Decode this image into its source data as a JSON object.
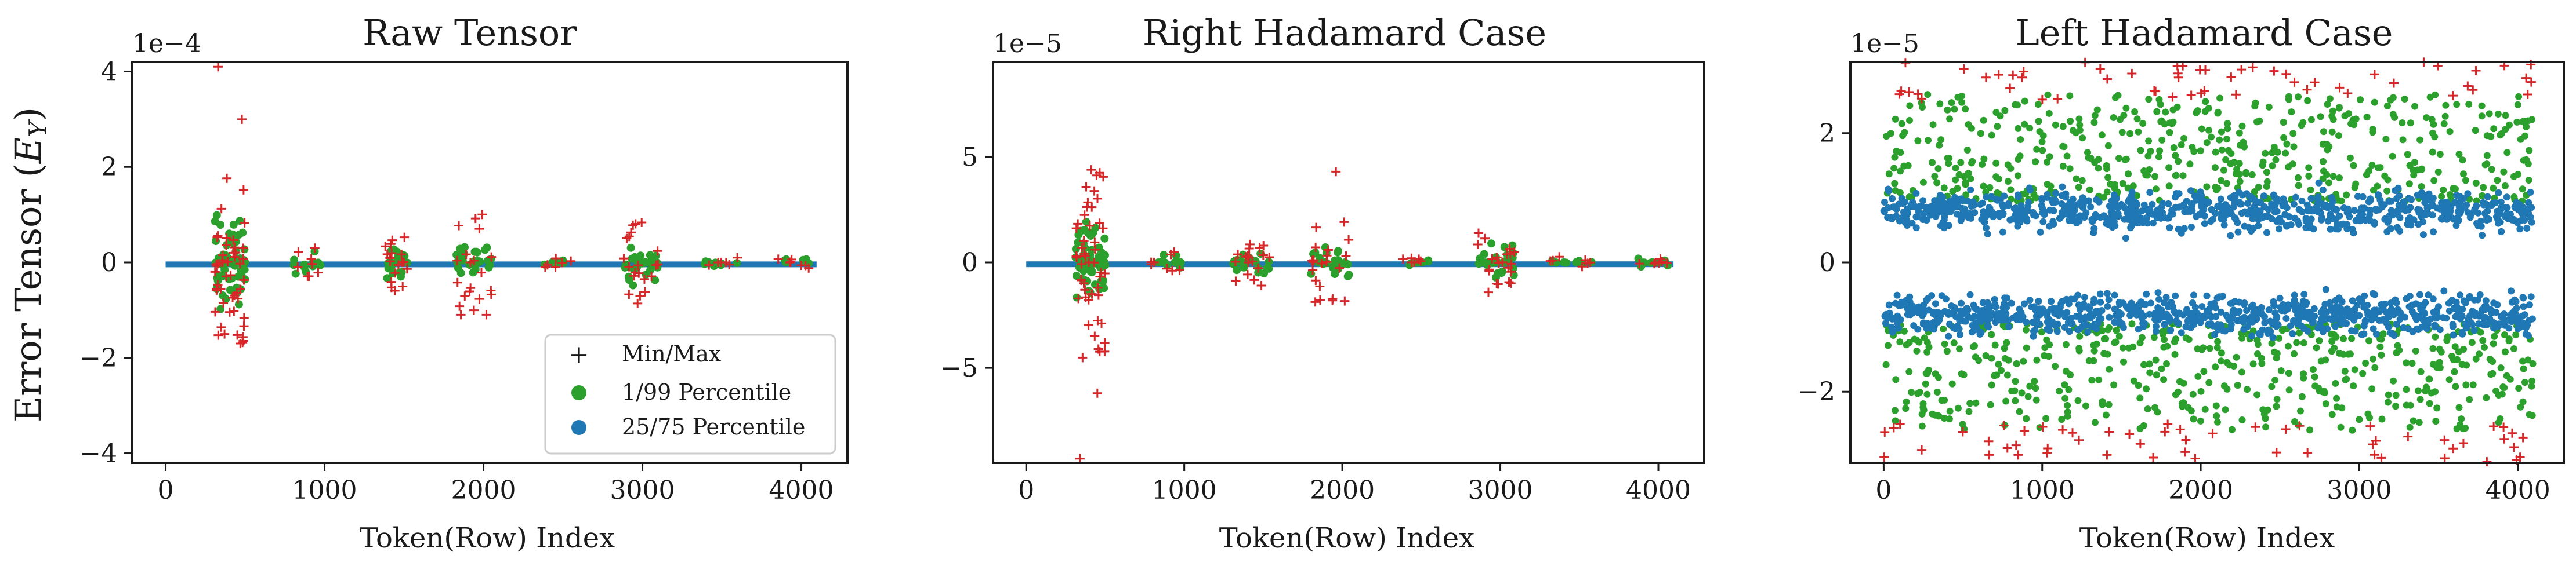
{
  "colors": {
    "minmax": "#d62728",
    "p1_99": "#2ca02c",
    "p25_75": "#1f77b4",
    "axis": "#1a1a1a"
  },
  "legend": {
    "items": [
      {
        "key": "minmax",
        "label": "Min/Max",
        "marker": "plus"
      },
      {
        "key": "p1_99",
        "label": "1/99 Percentile",
        "marker": "dot"
      },
      {
        "key": "p25_75",
        "label": "25/75 Percentile",
        "marker": "dot"
      }
    ],
    "placement": "lower-right of first panel"
  },
  "chart_data": [
    {
      "type": "scatter",
      "title": "Raw Tensor",
      "xlabel": "Token(Row) Index",
      "ylabel": "Error Tensor ($E_Y$)",
      "offset_text": "1e−4",
      "xlim": [
        -210,
        4290
      ],
      "ylim": [
        -4.2,
        4.2
      ],
      "xticks": [
        0,
        1000,
        2000,
        3000,
        4000
      ],
      "yticks": [
        -4,
        -2,
        0,
        2,
        4
      ],
      "ytick_labels": [
        "−4",
        "−2",
        "0",
        "2",
        "4"
      ],
      "pattern": "sparse_outliers",
      "tokens": [
        0,
        4096
      ],
      "band": {
        "p25_75_abs": 0.02
      },
      "clusters": [
        {
          "x": [
            310,
            500
          ],
          "green_abs": 1.0,
          "red_abs": 1.8,
          "n": 70
        },
        {
          "x": [
            790,
            980
          ],
          "green_abs": 0.25,
          "red_abs": 0.3,
          "n": 12
        },
        {
          "x": [
            1380,
            1520
          ],
          "green_abs": 0.35,
          "red_abs": 0.6,
          "n": 25
        },
        {
          "x": [
            1830,
            2050
          ],
          "green_abs": 0.4,
          "red_abs": 1.1,
          "n": 30
        },
        {
          "x": [
            2380,
            2550
          ],
          "green_abs": 0.1,
          "red_abs": 0.1,
          "n": 8
        },
        {
          "x": [
            2880,
            3100
          ],
          "green_abs": 0.5,
          "red_abs": 0.9,
          "n": 30
        },
        {
          "x": [
            3380,
            3600
          ],
          "green_abs": 0.1,
          "red_abs": 0.1,
          "n": 8
        },
        {
          "x": [
            3850,
            4080
          ],
          "green_abs": 0.12,
          "red_abs": 0.15,
          "n": 10
        }
      ],
      "highlights": [
        {
          "x": 330,
          "y": 4.1,
          "series": "minmax"
        },
        {
          "x": 480,
          "y": 3.0,
          "series": "minmax"
        },
        {
          "x": 470,
          "y": -1.7,
          "series": "minmax"
        }
      ]
    },
    {
      "type": "scatter",
      "title": "Right Hadamard Case",
      "xlabel": "Token(Row) Index",
      "ylabel": "",
      "offset_text": "1e−5",
      "xlim": [
        -210,
        4290
      ],
      "ylim": [
        -9.5,
        9.5
      ],
      "xticks": [
        0,
        1000,
        2000,
        3000,
        4000
      ],
      "yticks": [
        -5,
        0,
        5
      ],
      "ytick_labels": [
        "−5",
        "0",
        "5"
      ],
      "pattern": "sparse_outliers",
      "tokens": [
        0,
        4096
      ],
      "band": {
        "p25_75_abs": 0.05
      },
      "clusters": [
        {
          "x": [
            310,
            500
          ],
          "green_abs": 2.0,
          "red_abs": 4.6,
          "n": 70
        },
        {
          "x": [
            790,
            980
          ],
          "green_abs": 0.4,
          "red_abs": 0.5,
          "n": 12
        },
        {
          "x": [
            1300,
            1540
          ],
          "green_abs": 0.6,
          "red_abs": 1.2,
          "n": 25
        },
        {
          "x": [
            1800,
            2050
          ],
          "green_abs": 0.8,
          "red_abs": 2.2,
          "n": 30
        },
        {
          "x": [
            2380,
            2550
          ],
          "green_abs": 0.15,
          "red_abs": 0.2,
          "n": 8
        },
        {
          "x": [
            2850,
            3100
          ],
          "green_abs": 1.0,
          "red_abs": 1.5,
          "n": 30
        },
        {
          "x": [
            3300,
            3600
          ],
          "green_abs": 0.2,
          "red_abs": 0.3,
          "n": 10
        },
        {
          "x": [
            3850,
            4080
          ],
          "green_abs": 0.2,
          "red_abs": 0.3,
          "n": 10
        }
      ],
      "highlights": [
        {
          "x": 340,
          "y": -9.3,
          "series": "minmax"
        },
        {
          "x": 450,
          "y": -6.2,
          "series": "minmax"
        },
        {
          "x": 1960,
          "y": 4.3,
          "series": "minmax"
        }
      ]
    },
    {
      "type": "scatter",
      "title": "Left Hadamard Case",
      "xlabel": "Token(Row) Index",
      "ylabel": "",
      "offset_text": "1e−5",
      "xlim": [
        -210,
        4290
      ],
      "ylim": [
        -3.1,
        3.1
      ],
      "xticks": [
        0,
        1000,
        2000,
        3000,
        4000
      ],
      "yticks": [
        -2,
        0,
        2
      ],
      "ytick_labels": [
        "−2",
        "0",
        "2"
      ],
      "pattern": "dense_bands",
      "tokens": [
        0,
        4096
      ],
      "band": {
        "p25_75_center": 0.8,
        "p25_75_spread": 0.45,
        "n_blue": 800,
        "p1_99_range": [
          0.95,
          2.6
        ],
        "n_green": 500,
        "minmax_range": [
          2.5,
          3.1
        ],
        "n_red": 55
      },
      "clusters": [],
      "highlights": []
    }
  ]
}
